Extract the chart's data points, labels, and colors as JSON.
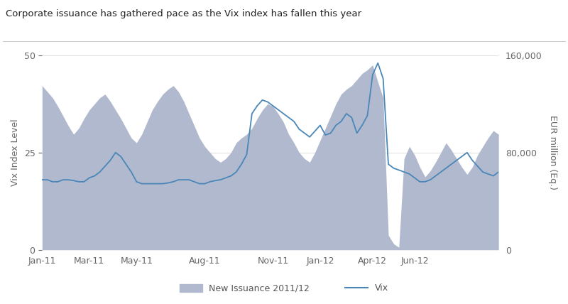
{
  "title": "Corporate issuance has gathered pace as the Vix index has fallen this year",
  "ylabel_left": "Vix Index Level",
  "ylabel_right": "EUR million (Eq.)",
  "ylim_left": [
    0,
    50
  ],
  "ylim_right": [
    0,
    160000
  ],
  "yticks_left": [
    0,
    25,
    50
  ],
  "yticks_right": [
    0,
    80000,
    160000
  ],
  "xtick_positions": [
    0,
    9,
    18,
    31,
    44,
    53,
    63,
    71
  ],
  "xtick_labels": [
    "Jan-11",
    "Mar-11",
    "May-11",
    "Aug-11",
    "Nov-11",
    "Jan-12",
    "Apr-12",
    "Jun-12"
  ],
  "bg_color": "#ffffff",
  "area_color": "#b0b9ce",
  "line_color": "#4a87b8",
  "title_color": "#222222",
  "legend_area_label": "New Issuance 2011/12",
  "legend_line_label": "Vix",
  "vix_data": [
    18.0,
    18.0,
    17.5,
    17.5,
    18.0,
    18.0,
    17.8,
    17.5,
    17.5,
    18.5,
    19.0,
    20.0,
    21.5,
    23.0,
    25.0,
    24.0,
    22.0,
    20.0,
    17.5,
    17.0,
    17.0,
    17.0,
    17.0,
    17.0,
    17.2,
    17.5,
    18.0,
    18.0,
    18.0,
    17.5,
    17.0,
    17.0,
    17.5,
    17.8,
    18.0,
    18.5,
    19.0,
    20.0,
    22.0,
    24.5,
    35.0,
    37.0,
    38.5,
    38.0,
    37.0,
    36.0,
    35.0,
    34.0,
    33.0,
    31.0,
    30.0,
    29.0,
    30.5,
    32.0,
    29.5,
    30.0,
    32.0,
    33.0,
    35.0,
    34.0,
    30.0,
    32.0,
    34.5,
    45.0,
    48.0,
    44.0,
    22.0,
    21.0,
    20.5,
    20.0,
    19.5,
    18.5,
    17.5,
    17.5,
    18.0,
    19.0,
    20.0,
    21.0,
    22.0,
    23.0,
    24.0,
    25.0,
    23.0,
    21.5,
    20.0,
    19.5,
    19.0,
    20.0
  ],
  "issuance_data": [
    135000,
    130000,
    125000,
    118000,
    110000,
    102000,
    95000,
    100000,
    108000,
    115000,
    120000,
    125000,
    128000,
    122000,
    115000,
    108000,
    100000,
    92000,
    88000,
    95000,
    105000,
    115000,
    122000,
    128000,
    132000,
    135000,
    130000,
    122000,
    112000,
    102000,
    92000,
    85000,
    80000,
    75000,
    72000,
    75000,
    80000,
    88000,
    92000,
    95000,
    100000,
    108000,
    115000,
    120000,
    118000,
    112000,
    105000,
    95000,
    88000,
    80000,
    75000,
    72000,
    80000,
    90000,
    100000,
    110000,
    120000,
    128000,
    132000,
    135000,
    140000,
    145000,
    148000,
    152000,
    138000,
    125000,
    12000,
    5000,
    2000,
    75000,
    85000,
    78000,
    68000,
    60000,
    65000,
    72000,
    80000,
    88000,
    82000,
    75000,
    68000,
    62000,
    68000,
    78000,
    85000,
    92000,
    98000,
    95000
  ]
}
